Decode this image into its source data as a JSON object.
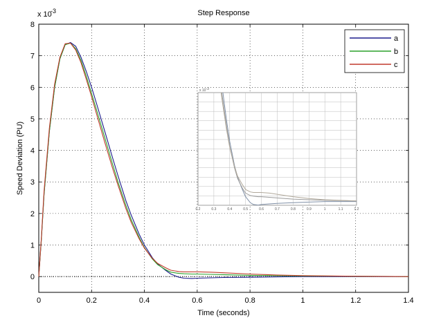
{
  "chart_data": {
    "type": "line",
    "title": "Step Response",
    "xlabel": "Time (seconds)",
    "ylabel": "Speed Deviation (PU)",
    "y_exponent_label": "x 10",
    "y_exponent_power": "-3",
    "xlim": [
      0,
      1.4
    ],
    "ylim": [
      -0.5,
      8
    ],
    "x_ticks": [
      "0",
      "0.2",
      "0.4",
      "0.6",
      "0.8",
      "1",
      "1.2",
      "1.4"
    ],
    "y_ticks": [
      "0",
      "1",
      "2",
      "3",
      "4",
      "5",
      "6",
      "7",
      "8"
    ],
    "grid": true,
    "legend_position": "top-right",
    "series": [
      {
        "name": "a",
        "color": "#1a1a8c",
        "x": [
          0,
          0.01,
          0.02,
          0.04,
          0.06,
          0.08,
          0.1,
          0.12,
          0.14,
          0.16,
          0.18,
          0.2,
          0.22,
          0.25,
          0.28,
          0.3,
          0.33,
          0.35,
          0.38,
          0.4,
          0.43,
          0.45,
          0.48,
          0.5,
          0.53,
          0.55,
          0.58,
          0.6,
          0.65,
          0.7,
          0.8,
          0.9,
          1.0,
          1.2,
          1.4
        ],
        "y": [
          0,
          1.2,
          2.6,
          4.6,
          6.0,
          6.9,
          7.35,
          7.42,
          7.3,
          6.95,
          6.5,
          6.0,
          5.45,
          4.6,
          3.75,
          3.2,
          2.4,
          1.95,
          1.35,
          1.0,
          0.6,
          0.4,
          0.2,
          0.08,
          -0.02,
          -0.05,
          -0.06,
          -0.05,
          -0.04,
          -0.03,
          -0.02,
          -0.01,
          0,
          0,
          0
        ]
      },
      {
        "name": "b",
        "color": "#2aa02a",
        "x": [
          0,
          0.01,
          0.02,
          0.04,
          0.06,
          0.08,
          0.1,
          0.12,
          0.14,
          0.16,
          0.18,
          0.2,
          0.22,
          0.25,
          0.28,
          0.3,
          0.33,
          0.35,
          0.38,
          0.4,
          0.43,
          0.45,
          0.48,
          0.5,
          0.53,
          0.55,
          0.58,
          0.6,
          0.65,
          0.7,
          0.8,
          0.9,
          1.0,
          1.2,
          1.4
        ],
        "y": [
          0,
          1.2,
          2.6,
          4.6,
          6.0,
          6.9,
          7.35,
          7.4,
          7.22,
          6.85,
          6.35,
          5.8,
          5.25,
          4.4,
          3.55,
          3.0,
          2.25,
          1.8,
          1.25,
          0.92,
          0.56,
          0.38,
          0.22,
          0.14,
          0.1,
          0.09,
          0.08,
          0.08,
          0.07,
          0.06,
          0.04,
          0.03,
          0.02,
          0.01,
          0
        ]
      },
      {
        "name": "c",
        "color": "#c0392b",
        "x": [
          0,
          0.01,
          0.02,
          0.04,
          0.06,
          0.08,
          0.1,
          0.12,
          0.14,
          0.16,
          0.18,
          0.2,
          0.22,
          0.25,
          0.28,
          0.3,
          0.33,
          0.35,
          0.38,
          0.4,
          0.43,
          0.45,
          0.48,
          0.5,
          0.53,
          0.55,
          0.58,
          0.6,
          0.65,
          0.7,
          0.8,
          0.9,
          1.0,
          1.2,
          1.4
        ],
        "y": [
          0,
          1.25,
          2.7,
          4.7,
          6.1,
          6.95,
          7.38,
          7.4,
          7.18,
          6.78,
          6.25,
          5.7,
          5.12,
          4.25,
          3.42,
          2.9,
          2.15,
          1.72,
          1.2,
          0.9,
          0.58,
          0.42,
          0.28,
          0.2,
          0.16,
          0.15,
          0.15,
          0.15,
          0.14,
          0.12,
          0.08,
          0.05,
          0.03,
          0.01,
          0
        ]
      }
    ],
    "inset": {
      "xlim": [
        0.2,
        1.2
      ],
      "ylim": [
        -0.1,
        2.9
      ],
      "x_ticks": [
        "0.2",
        "0.3",
        "0.4",
        "0.5",
        "0.6",
        "0.7",
        "0.8",
        "0.9",
        "1",
        "1.1",
        "1.2"
      ],
      "y_exponent_label": "x 10",
      "y_exponent_power": "-3"
    }
  }
}
